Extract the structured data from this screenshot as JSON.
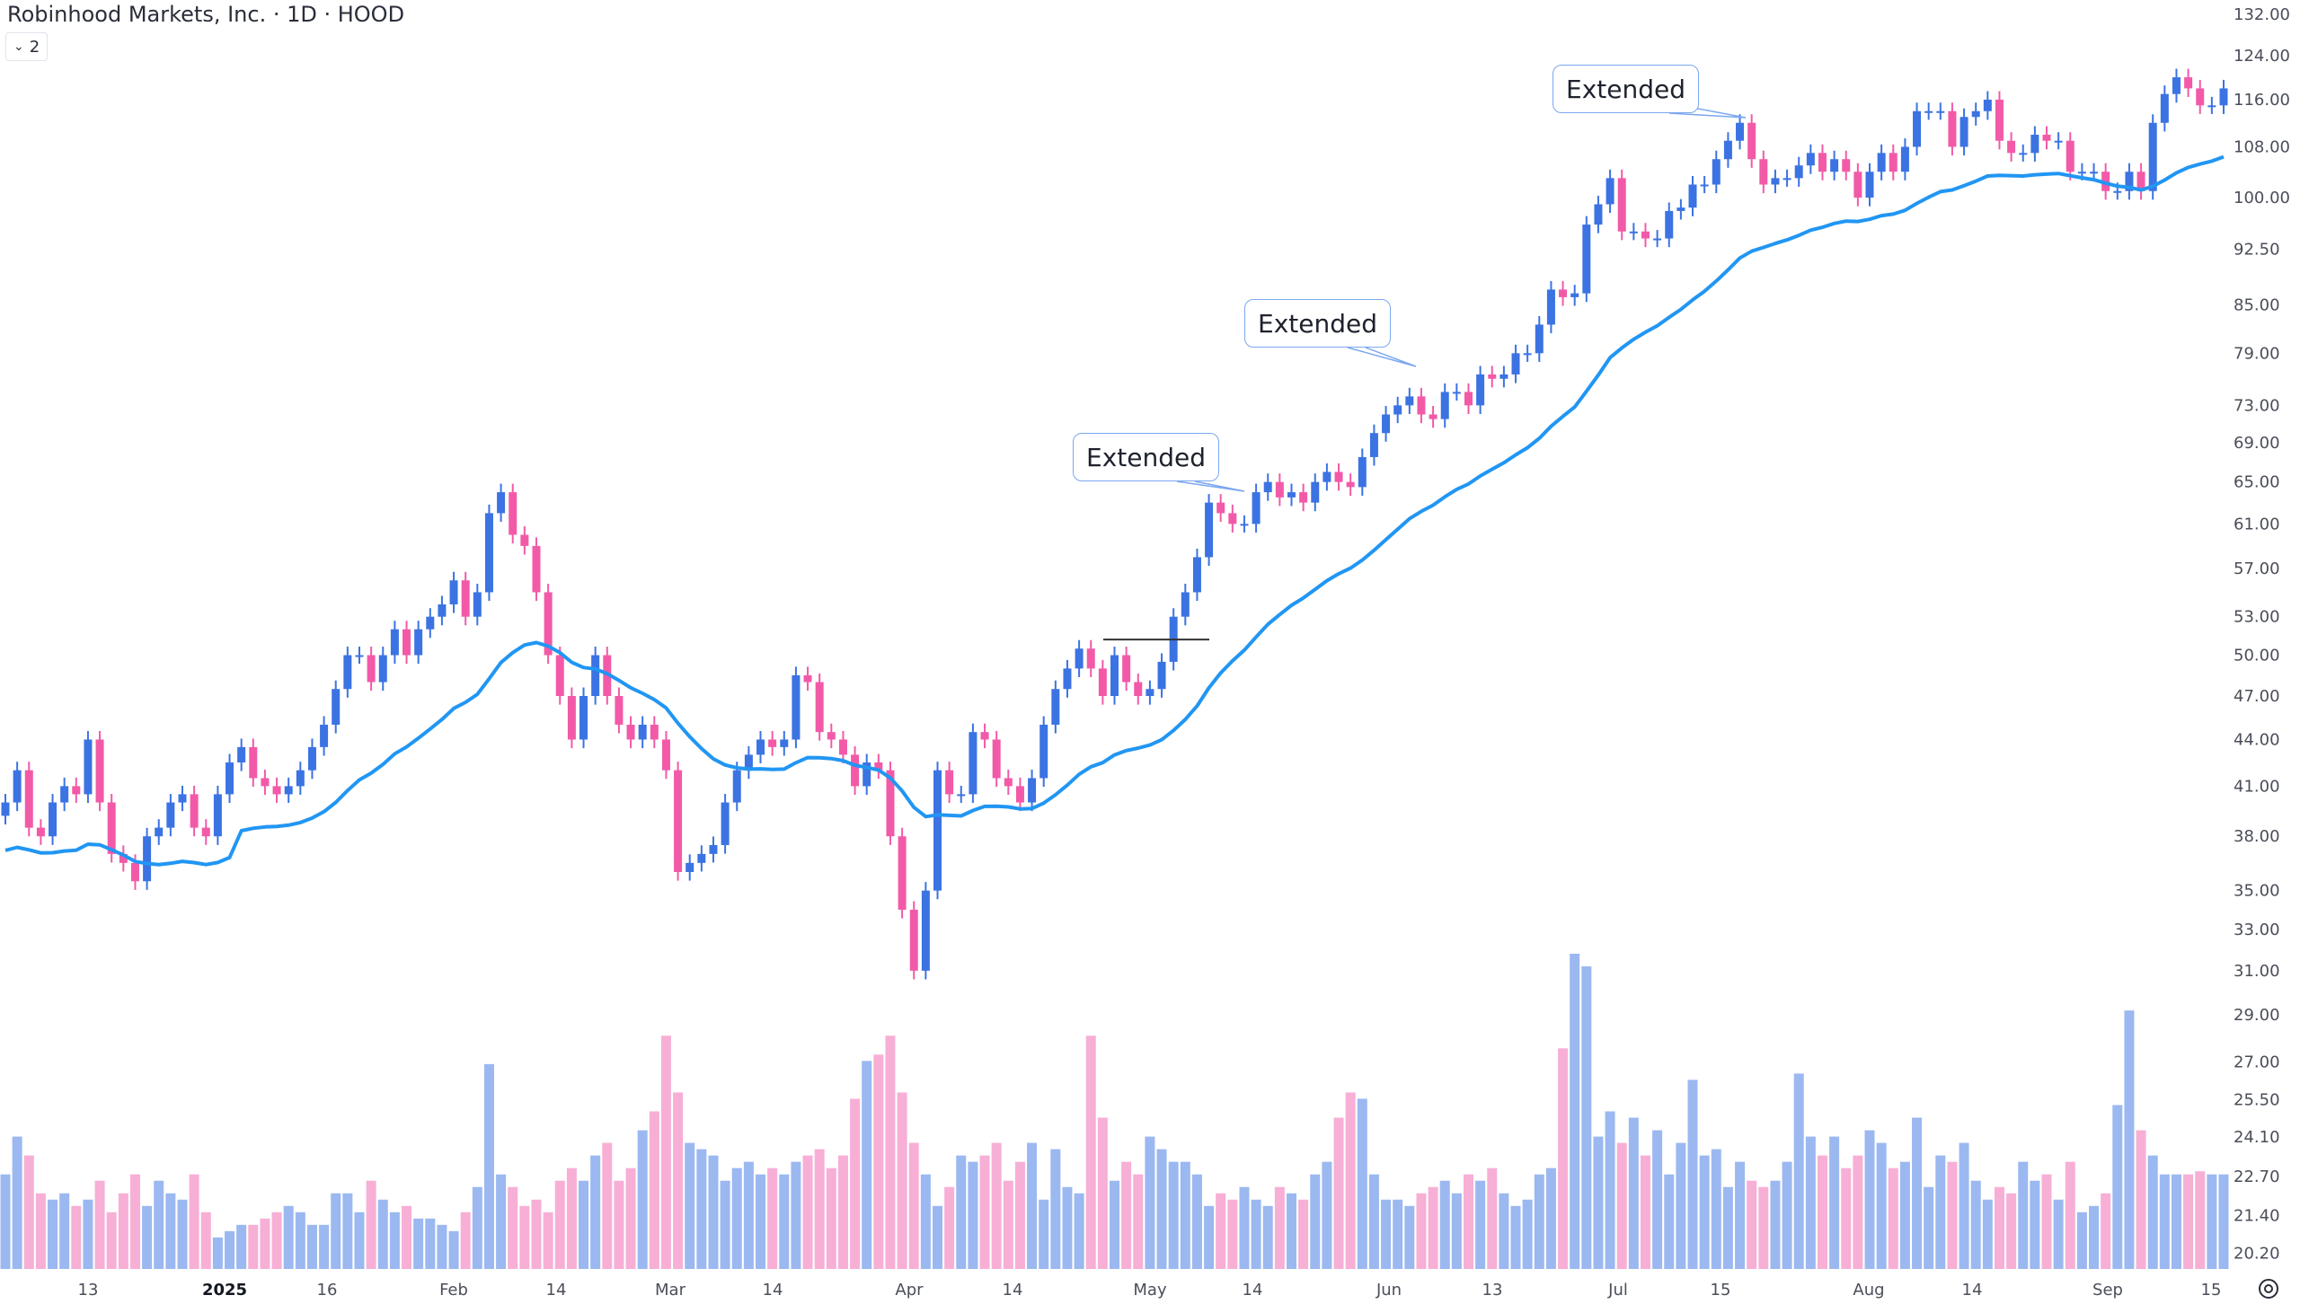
{
  "header": {
    "title": "Robinhood Markets, Inc. · 1D · HOOD",
    "legend_toggle_label": "2",
    "legend_toggle_icon": "chevron-down-icon"
  },
  "annotations": {
    "callout_1": "Extended",
    "callout_2": "Extended",
    "callout_3": "Extended"
  },
  "colors": {
    "up": "#3b73e3",
    "down": "#f25aa8",
    "volume_up": "#9bb8f0",
    "volume_down": "#f7afd6",
    "ema": "#2196f3"
  },
  "chart_data": {
    "type": "candlestick",
    "title": "Robinhood Markets, Inc. · 1D · HOOD",
    "scale": "log",
    "ylim": [
      20.2,
      132
    ],
    "y_ticks": [
      "132.00",
      "124.00",
      "116.00",
      "108.00",
      "100.00",
      "92.50",
      "85.00",
      "79.00",
      "73.00",
      "69.00",
      "65.00",
      "61.00",
      "57.00",
      "53.00",
      "50.00",
      "47.00",
      "44.00",
      "41.00",
      "38.00",
      "35.00",
      "33.00",
      "31.00",
      "29.00",
      "27.00",
      "25.50",
      "24.10",
      "22.70",
      "21.40",
      "20.20"
    ],
    "x_ticks": [
      "13",
      "2025",
      "16",
      "Feb",
      "14",
      "Mar",
      "14",
      "Apr",
      "14",
      "May",
      "14",
      "Jun",
      "13",
      "Jul",
      "15",
      "Aug",
      "14",
      "Sep",
      "15"
    ],
    "indicator": "EMA 21 (close)",
    "close": [
      40,
      42,
      38.5,
      38,
      40,
      41,
      40.5,
      44,
      40,
      37,
      36.5,
      35.5,
      38,
      38.5,
      40,
      40.5,
      38.5,
      38,
      40.5,
      42.5,
      43.5,
      41.5,
      41,
      40.5,
      41,
      42,
      43.5,
      45,
      47.5,
      50,
      50,
      48,
      50,
      52,
      50,
      52,
      53,
      54,
      56,
      53,
      55,
      62,
      64,
      60,
      59,
      55,
      50,
      47,
      44,
      47,
      50,
      47,
      45,
      44,
      45,
      44,
      42,
      36,
      36.5,
      37,
      37.5,
      40,
      42,
      43,
      44,
      43.5,
      44,
      48.5,
      48,
      44.5,
      44,
      43,
      41,
      42.5,
      42,
      38,
      34,
      31,
      35,
      42,
      40.5,
      40.5,
      44.5,
      44,
      41.5,
      41,
      40,
      41.5,
      45,
      47.5,
      49,
      50.5,
      49,
      47,
      50,
      48,
      47,
      47.5,
      49.5,
      53,
      55,
      58,
      63,
      62,
      61,
      61,
      64,
      65,
      63.5,
      64,
      63,
      65,
      66,
      65,
      64.5,
      67.5,
      70,
      72,
      73,
      74,
      72,
      71.5,
      74.5,
      74.5,
      73,
      76.5,
      76,
      76.5,
      79,
      79,
      82.5,
      87,
      86,
      86.5,
      96,
      99,
      103,
      95,
      95,
      94,
      94,
      98,
      98.5,
      102,
      102,
      106,
      109,
      112,
      106,
      102,
      103,
      103,
      105,
      107,
      104,
      106,
      104,
      100,
      104,
      107,
      104,
      108,
      114,
      114,
      114,
      108,
      113,
      114,
      116,
      109,
      107,
      107,
      110,
      109,
      109,
      104,
      104,
      104,
      101,
      101,
      104,
      101,
      112,
      117,
      120,
      118,
      115,
      115,
      118
    ],
    "volume": [
      30,
      42,
      36,
      24,
      22,
      24,
      20,
      22,
      28,
      18,
      24,
      30,
      20,
      28,
      24,
      22,
      30,
      18,
      10,
      12,
      14,
      14,
      16,
      18,
      20,
      18,
      14,
      14,
      24,
      24,
      18,
      28,
      22,
      18,
      20,
      16,
      16,
      14,
      12,
      18,
      26,
      65,
      30,
      26,
      20,
      22,
      18,
      28,
      32,
      28,
      36,
      40,
      28,
      32,
      44,
      50,
      74,
      56,
      40,
      38,
      36,
      28,
      32,
      34,
      30,
      32,
      30,
      34,
      36,
      38,
      32,
      36,
      54,
      66,
      68,
      74,
      56,
      40,
      30,
      20,
      26,
      36,
      34,
      36,
      40,
      28,
      34,
      40,
      22,
      38,
      26,
      24,
      74,
      48,
      28,
      34,
      30,
      42,
      38,
      34,
      34,
      30,
      20,
      24,
      22,
      26,
      22,
      20,
      26,
      24,
      22,
      30,
      34,
      48,
      56,
      54,
      30,
      22,
      22,
      20,
      24,
      26,
      28,
      24,
      30,
      28,
      32,
      24,
      20,
      22,
      30,
      32,
      70,
      100,
      96,
      42,
      50,
      40,
      48,
      36,
      44,
      30,
      40,
      60,
      36,
      38,
      26,
      34,
      28,
      26,
      28,
      34,
      62,
      42,
      36,
      42,
      32,
      36,
      44,
      40,
      32,
      34,
      48,
      26,
      36,
      34,
      40,
      28,
      22,
      26,
      24,
      34,
      28,
      30,
      22,
      34,
      18,
      20,
      24,
      52,
      82,
      44,
      36,
      30,
      30,
      30,
      31,
      30,
      30
    ],
    "volume_units": "relative (max = 100)",
    "horizontal_level": 51.2
  }
}
